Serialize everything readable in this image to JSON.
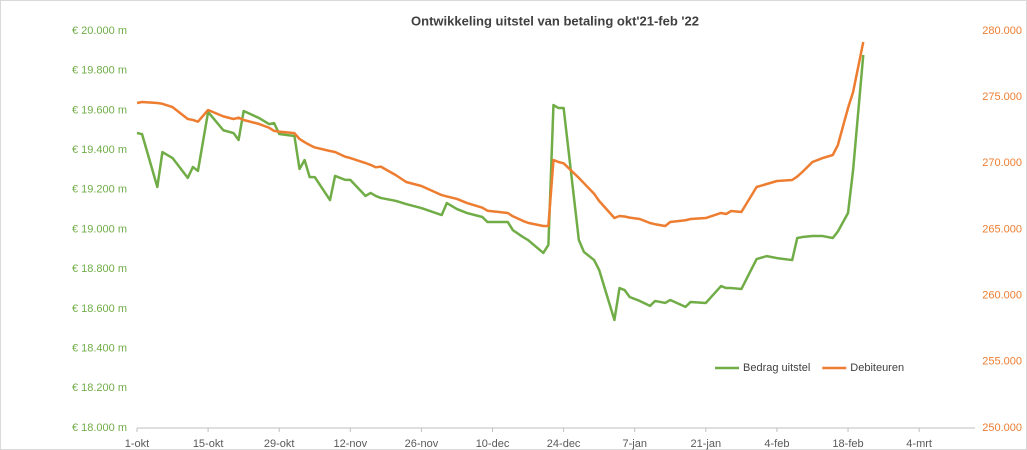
{
  "chart_data": {
    "type": "line",
    "title": "Ontwikkeling uitstel van betaling okt'21-feb '22",
    "x": [
      0,
      1,
      4,
      5,
      7,
      10,
      11,
      12,
      14,
      17,
      19,
      20,
      21,
      24,
      26,
      27,
      28,
      31,
      32,
      33,
      34,
      35,
      38,
      39,
      41,
      42,
      45,
      46,
      47,
      48,
      51,
      53,
      56,
      60,
      61,
      63,
      65,
      68,
      69,
      73,
      74,
      76,
      77,
      80,
      81,
      82,
      83,
      84,
      87,
      88,
      90,
      91,
      94,
      95,
      96,
      97,
      99,
      101,
      102,
      104,
      105,
      108,
      109,
      112,
      115,
      116,
      117,
      119,
      122,
      124,
      126,
      129,
      130,
      131,
      133,
      135,
      137,
      138,
      140,
      141,
      143
    ],
    "xlim": [
      0,
      165
    ],
    "xticks": [
      {
        "value": 0,
        "label": "1-okt"
      },
      {
        "value": 14,
        "label": "15-okt"
      },
      {
        "value": 28,
        "label": "29-okt"
      },
      {
        "value": 42,
        "label": "12-nov"
      },
      {
        "value": 56,
        "label": "26-nov"
      },
      {
        "value": 70,
        "label": "10-dec"
      },
      {
        "value": 84,
        "label": "24-dec"
      },
      {
        "value": 98,
        "label": "7-jan"
      },
      {
        "value": 112,
        "label": "21-jan"
      },
      {
        "value": 126,
        "label": "4-feb"
      },
      {
        "value": 140,
        "label": "18-feb"
      },
      {
        "value": 154,
        "label": "4-mrt"
      }
    ],
    "ylim": [
      18000,
      20000
    ],
    "yticks": [
      {
        "value": 18000,
        "label": "€ 18.000 m"
      },
      {
        "value": 18200,
        "label": "€ 18.200 m"
      },
      {
        "value": 18400,
        "label": "€ 18.400 m"
      },
      {
        "value": 18600,
        "label": "€ 18.600 m"
      },
      {
        "value": 18800,
        "label": "€ 18.800 m"
      },
      {
        "value": 19000,
        "label": "€ 19.000 m"
      },
      {
        "value": 19200,
        "label": "€ 19.200 m"
      },
      {
        "value": 19400,
        "label": "€ 19.400 m"
      },
      {
        "value": 19600,
        "label": "€ 19.600 m"
      },
      {
        "value": 19800,
        "label": "€ 19.800 m"
      },
      {
        "value": 20000,
        "label": "€ 20.000 m"
      }
    ],
    "y2lim": [
      250000,
      280000
    ],
    "y2ticks": [
      {
        "value": 250000,
        "label": "250.000"
      },
      {
        "value": 255000,
        "label": "255.000"
      },
      {
        "value": 260000,
        "label": "260.000"
      },
      {
        "value": 265000,
        "label": "265.000"
      },
      {
        "value": 270000,
        "label": "270.000"
      },
      {
        "value": 275000,
        "label": "275.000"
      },
      {
        "value": 280000,
        "label": "280.000"
      }
    ],
    "legend": "lower right",
    "series": [
      {
        "name": "Bedrag uitstel",
        "color": "#70ad47",
        "values": [
          19486,
          19480,
          19214,
          19390,
          19360,
          19260,
          19315,
          19295,
          19592,
          19500,
          19486,
          19451,
          19597,
          19562,
          19531,
          19536,
          19481,
          19471,
          19305,
          19350,
          19264,
          19264,
          19148,
          19270,
          19250,
          19250,
          19169,
          19184,
          19169,
          19159,
          19144,
          19128,
          19108,
          19073,
          19133,
          19103,
          19083,
          19063,
          19038,
          19038,
          18997,
          18962,
          18947,
          18882,
          18922,
          19627,
          19612,
          19612,
          18947,
          18887,
          18846,
          18796,
          18544,
          18705,
          18695,
          18660,
          18640,
          18615,
          18640,
          18630,
          18645,
          18610,
          18635,
          18630,
          18715,
          18705,
          18705,
          18700,
          18851,
          18866,
          18856,
          18846,
          18957,
          18962,
          18967,
          18967,
          18957,
          18990,
          19083,
          19300,
          19879
        ]
      },
      {
        "name": "Debiteuren",
        "color": "#ed7d31",
        "axis": "y2",
        "values": [
          274559,
          274635,
          274560,
          274500,
          274250,
          273350,
          273280,
          273150,
          274030,
          273550,
          273350,
          273450,
          273274,
          272980,
          272690,
          272450,
          272400,
          272280,
          271839,
          271600,
          271385,
          271200,
          270930,
          270856,
          270500,
          270403,
          270025,
          269880,
          269700,
          269750,
          269100,
          268589,
          268287,
          267600,
          267500,
          267310,
          267000,
          266650,
          266420,
          266247,
          266000,
          265650,
          265500,
          265264,
          265264,
          270252,
          270100,
          270000,
          268900,
          268500,
          267700,
          267153,
          265869,
          266020,
          265980,
          265900,
          265793,
          265491,
          265400,
          265264,
          265567,
          265700,
          265793,
          265869,
          266247,
          266171,
          266398,
          266322,
          268211,
          268438,
          268665,
          268740,
          269000,
          269345,
          270100,
          270400,
          270630,
          271385,
          274181,
          275390,
          279169
        ]
      }
    ]
  }
}
